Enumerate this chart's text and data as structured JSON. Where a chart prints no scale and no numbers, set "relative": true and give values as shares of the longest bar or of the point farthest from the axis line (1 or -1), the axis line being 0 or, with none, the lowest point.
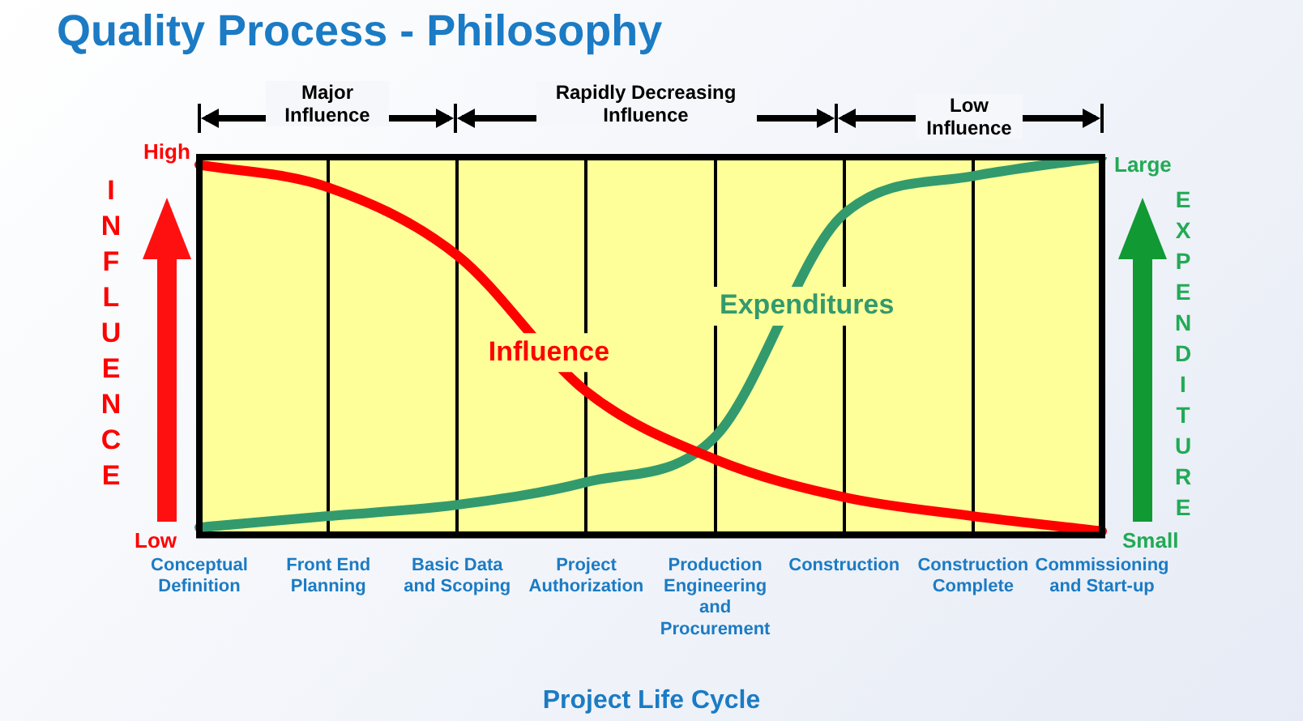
{
  "chart_data": {
    "type": "line",
    "title": "Quality Process - Philosophy",
    "xlabel": "Project Life Cycle",
    "ylabel": "INFLUENCE",
    "y2label": "EXPENDITURE",
    "categories": [
      "Conceptual Definition",
      "Front End Planning",
      "Basic Data and Scoping",
      "Project Authorization",
      "Production Engineering and Procurement",
      "Construction",
      "Construction Complete",
      "Commissioning and Start-up"
    ],
    "relative": true,
    "grid": "x",
    "legend": false,
    "marker": "none",
    "line_style": "solid",
    "series": [
      {
        "name": "Influence",
        "color": "#ff0000",
        "values": [
          0.98,
          0.92,
          0.74,
          0.38,
          0.2,
          0.1,
          0.05,
          0.01
        ]
      },
      {
        "name": "Expenditures",
        "color": "#339a6e",
        "values": [
          0.02,
          0.05,
          0.08,
          0.14,
          0.26,
          0.85,
          0.95,
          1.0
        ]
      }
    ],
    "annotations": [
      "Major Influence",
      "Rapidly Decreasing Influence",
      "Low Influence",
      "High",
      "Low",
      "Large",
      "Small"
    ]
  }
}
